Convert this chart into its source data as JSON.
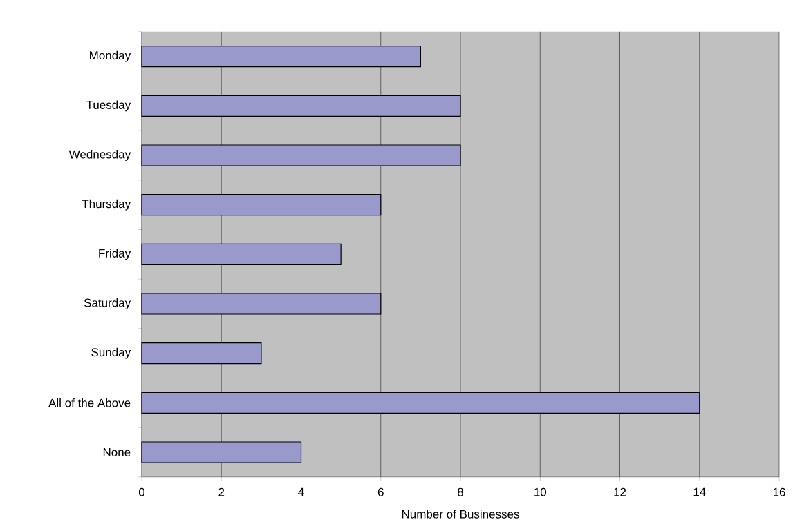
{
  "chart_data": {
    "type": "bar",
    "orientation": "horizontal",
    "xlabel": "Number of Businesses",
    "categories": [
      "Monday",
      "Tuesday",
      "Wednesday",
      "Thursday",
      "Friday",
      "Saturday",
      "Sunday",
      "All of the Above",
      "None"
    ],
    "values": [
      7,
      8,
      8,
      6,
      5,
      6,
      3,
      14,
      4
    ],
    "color": "#9999cc",
    "xlim": [
      0,
      16
    ],
    "xticks": [
      0,
      2,
      4,
      6,
      8,
      10,
      12,
      14,
      16
    ],
    "grid": "x"
  }
}
